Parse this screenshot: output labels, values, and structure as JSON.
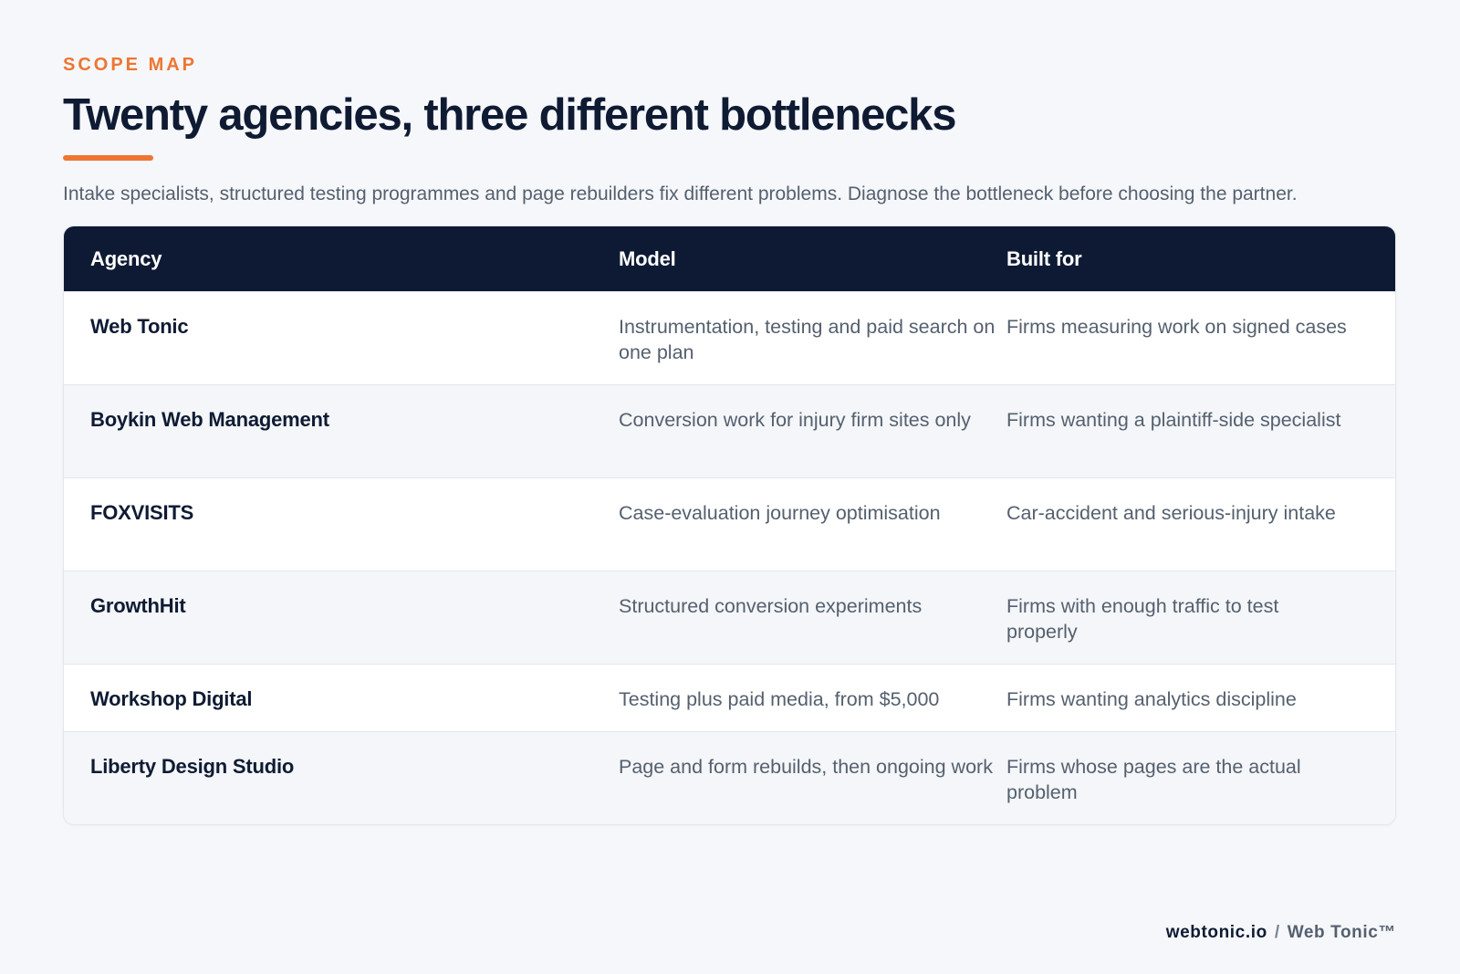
{
  "header": {
    "eyebrow": "SCOPE MAP",
    "title": "Twenty agencies, three different bottlenecks",
    "subtitle": "Intake specialists, structured testing programmes and page rebuilders fix different problems. Diagnose the bottleneck before choosing the partner."
  },
  "table": {
    "columns": [
      "Agency",
      "Model",
      "Built for"
    ],
    "rows": [
      {
        "agency": "Web Tonic",
        "model": "Instrumentation, testing and paid search on one plan",
        "built_for": "Firms measuring work on signed cases"
      },
      {
        "agency": "Boykin Web Management",
        "model": "Conversion work for injury firm sites only",
        "built_for": "Firms wanting a plaintiff-side specialist"
      },
      {
        "agency": "FOXVISITS",
        "model": "Case-evaluation journey optimisation",
        "built_for": "Car-accident and serious-injury intake"
      },
      {
        "agency": "GrowthHit",
        "model": "Structured conversion experiments",
        "built_for": "Firms with enough traffic to test properly"
      },
      {
        "agency": "Workshop Digital",
        "model": "Testing plus paid media, from $5,000",
        "built_for": "Firms wanting analytics discipline"
      },
      {
        "agency": "Liberty Design Studio",
        "model": "Page and form rebuilds, then ongoing work",
        "built_for": "Firms whose pages are the actual problem"
      }
    ]
  },
  "footer": {
    "domain": "webtonic.io",
    "separator": "/",
    "brand": "Web Tonic™"
  },
  "colors": {
    "accent": "#ee7532",
    "navy": "#0e1a33",
    "background": "#f5f7fa",
    "muted_text": "#55606f"
  }
}
